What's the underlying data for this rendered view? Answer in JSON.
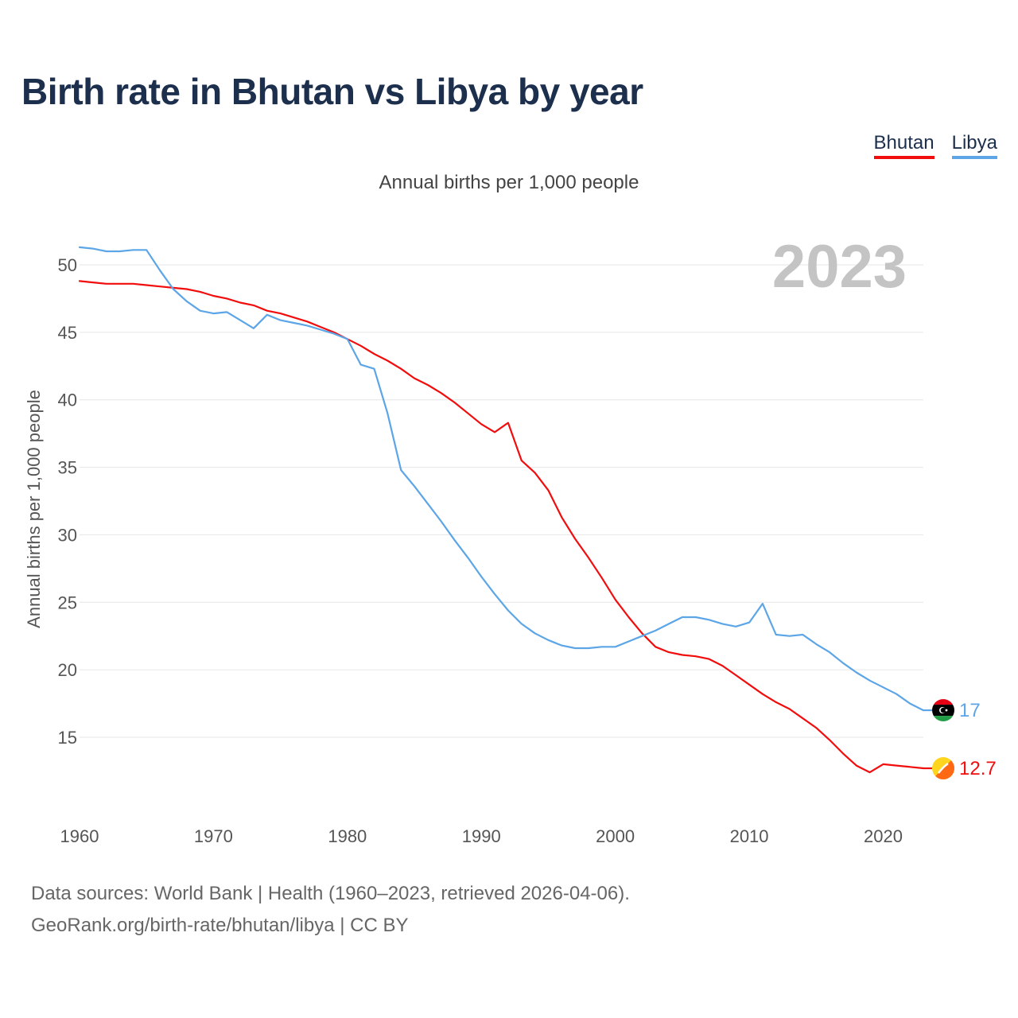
{
  "title": "Birth rate in Bhutan vs Libya by year",
  "legend": [
    {
      "name": "Bhutan",
      "color": "#f20d0d"
    },
    {
      "name": "Libya",
      "color": "#5ca5e6"
    }
  ],
  "footer": {
    "line1": "Data sources: World Bank | Health (1960–2023, retrieved 2026-04-06).",
    "line2": "GeoRank.org/birth-rate/bhutan/libya | CC BY"
  },
  "chart_data": {
    "type": "line",
    "title": "Birth rate in Bhutan vs Libya by year",
    "subtitle": "Annual births per 1,000 people",
    "ylabel": "Annual births per 1,000 people",
    "xlabel": "",
    "year_label": "2023",
    "xlim": [
      1960,
      2023
    ],
    "ylim": [
      10,
      52
    ],
    "yticks": [
      15,
      20,
      25,
      30,
      35,
      40,
      45,
      50
    ],
    "xticks": [
      1960,
      1970,
      1980,
      1990,
      2000,
      2010,
      2020
    ],
    "grid": true,
    "x": [
      1960,
      1961,
      1962,
      1963,
      1964,
      1965,
      1966,
      1967,
      1968,
      1969,
      1970,
      1971,
      1972,
      1973,
      1974,
      1975,
      1976,
      1977,
      1978,
      1979,
      1980,
      1981,
      1982,
      1983,
      1984,
      1985,
      1986,
      1987,
      1988,
      1989,
      1990,
      1991,
      1992,
      1993,
      1994,
      1995,
      1996,
      1997,
      1998,
      1999,
      2000,
      2001,
      2002,
      2003,
      2004,
      2005,
      2006,
      2007,
      2008,
      2009,
      2010,
      2011,
      2012,
      2013,
      2014,
      2015,
      2016,
      2017,
      2018,
      2019,
      2020,
      2021,
      2022,
      2023
    ],
    "series": [
      {
        "name": "Bhutan",
        "color": "#f20d0d",
        "end_label": "12.7",
        "values": [
          48.8,
          48.7,
          48.6,
          48.6,
          48.6,
          48.5,
          48.4,
          48.3,
          48.2,
          48.0,
          47.7,
          47.5,
          47.2,
          47.0,
          46.6,
          46.4,
          46.1,
          45.8,
          45.4,
          45.0,
          44.5,
          44.0,
          43.4,
          42.9,
          42.3,
          41.6,
          41.1,
          40.5,
          39.8,
          39.0,
          38.2,
          37.6,
          38.3,
          35.5,
          34.6,
          33.3,
          31.3,
          29.7,
          28.3,
          26.8,
          25.2,
          23.9,
          22.7,
          21.7,
          21.3,
          21.1,
          21.0,
          20.8,
          20.3,
          19.6,
          18.9,
          18.2,
          17.6,
          17.1,
          16.4,
          15.7,
          14.8,
          13.8,
          12.9,
          12.4,
          13.0,
          12.9,
          12.8,
          12.7
        ]
      },
      {
        "name": "Libya",
        "color": "#5ca5e6",
        "end_label": "17",
        "values": [
          51.3,
          51.2,
          51.0,
          51.0,
          51.1,
          51.1,
          49.6,
          48.2,
          47.3,
          46.6,
          46.4,
          46.5,
          45.9,
          45.3,
          46.3,
          45.9,
          45.7,
          45.5,
          45.2,
          44.9,
          44.5,
          42.6,
          42.3,
          39.0,
          34.8,
          33.6,
          32.3,
          31.0,
          29.6,
          28.3,
          26.9,
          25.6,
          24.4,
          23.4,
          22.7,
          22.2,
          21.8,
          21.6,
          21.6,
          21.7,
          21.7,
          22.1,
          22.5,
          22.9,
          23.4,
          23.9,
          23.9,
          23.7,
          23.4,
          23.2,
          23.5,
          24.9,
          22.6,
          22.5,
          22.6,
          21.9,
          21.3,
          20.5,
          19.8,
          19.2,
          18.7,
          18.2,
          17.5,
          17.0
        ]
      }
    ]
  }
}
